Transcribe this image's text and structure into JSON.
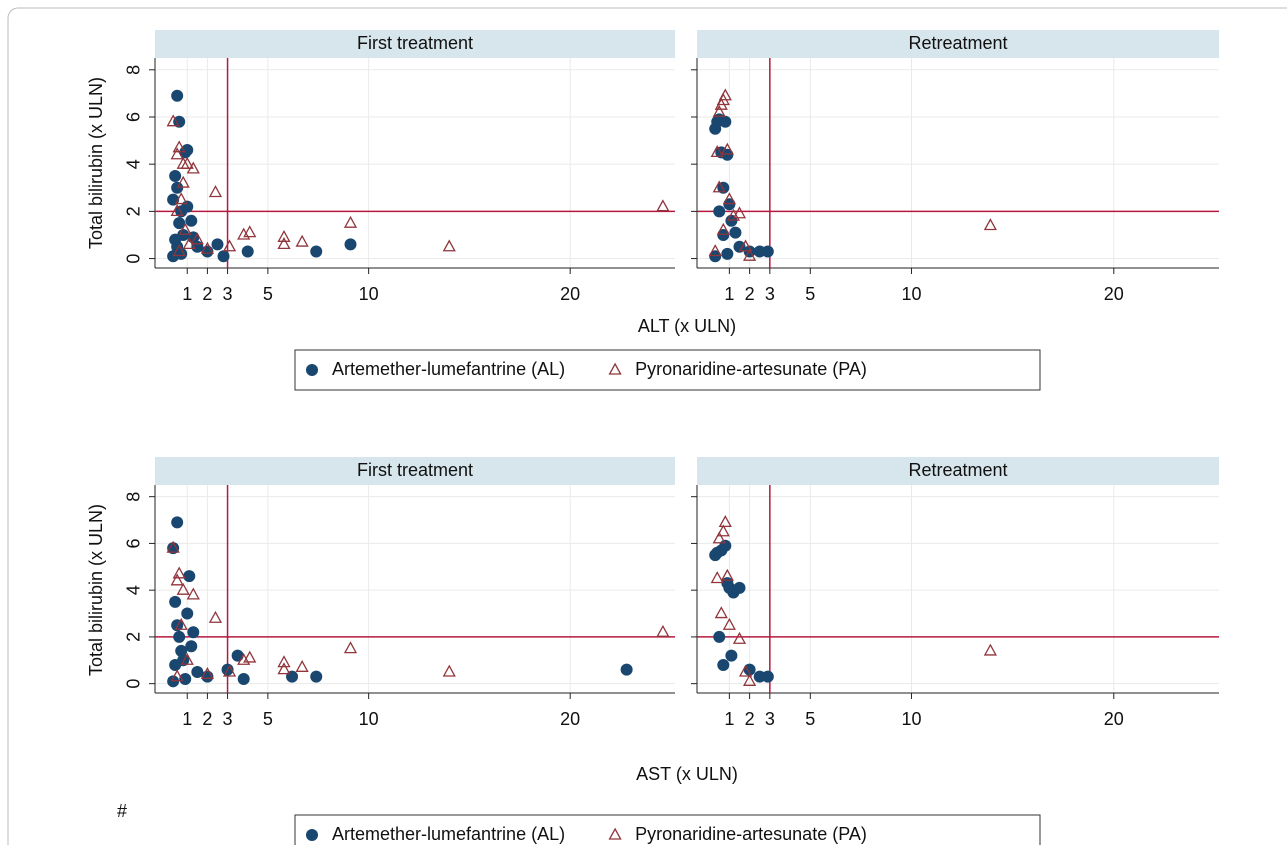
{
  "chart_data": [
    {
      "type": "scatter",
      "title": "First treatment",
      "ylabel": "Total bilirubin (x ULN)",
      "xlabel": "ALT (x ULN)",
      "legend": "bottom",
      "xlim": [
        -0.6,
        25.2
      ],
      "ylim": [
        -0.4,
        8.5
      ],
      "xticks": [
        1,
        2,
        3,
        5,
        10,
        20
      ],
      "yticks": [
        0,
        2,
        4,
        6,
        8
      ],
      "grid": true,
      "vline": 3,
      "hline": 2,
      "ref_color": "#b5193f",
      "series": [
        {
          "name": "Artemether-lumefantrine (AL)",
          "marker": "circle",
          "color": "#1a476f",
          "x": [
            0.3,
            0.4,
            0.5,
            0.5,
            0.6,
            0.7,
            0.8,
            0.9,
            1.0,
            1.2,
            1.5,
            2.0,
            2.5,
            2.8,
            4.0,
            7.4,
            9.1,
            0.5,
            0.6,
            1.0,
            0.4,
            0.7,
            0.3,
            1.3
          ],
          "y": [
            0.1,
            3.5,
            0.5,
            6.9,
            5.8,
            2.0,
            1.0,
            4.5,
            4.6,
            1.6,
            0.5,
            0.3,
            0.6,
            0.1,
            0.3,
            0.3,
            0.6,
            3.0,
            1.5,
            2.2,
            0.8,
            0.2,
            2.5,
            0.9
          ]
        },
        {
          "name": "Pyronaridine-artesunate (PA)",
          "marker": "triangle",
          "color": "#90353b",
          "x": [
            0.3,
            0.5,
            0.6,
            0.8,
            1.0,
            1.3,
            0.7,
            0.9,
            1.5,
            2.4,
            3.1,
            3.8,
            4.1,
            5.8,
            5.8,
            6.7,
            9.1,
            14.0,
            24.6,
            0.5,
            0.6,
            0.8,
            1.1,
            2.0
          ],
          "y": [
            5.8,
            4.4,
            4.7,
            4.0,
            4.0,
            3.8,
            2.5,
            1.2,
            0.8,
            2.8,
            0.5,
            1.0,
            1.1,
            0.9,
            0.6,
            0.7,
            1.5,
            0.5,
            2.2,
            2.0,
            0.3,
            3.2,
            0.6,
            0.4
          ]
        }
      ]
    },
    {
      "type": "scatter",
      "title": "Retreatment",
      "xlim": [
        -0.6,
        25.2
      ],
      "ylim": [
        -0.4,
        8.5
      ],
      "xticks": [
        1,
        2,
        3,
        5,
        10,
        20
      ],
      "yticks": [
        0,
        2,
        4,
        6,
        8
      ],
      "grid": true,
      "vline": 3,
      "hline": 2,
      "ref_color": "#b5193f",
      "series": [
        {
          "name": "Artemether-lumefantrine (AL)",
          "marker": "circle",
          "color": "#1a476f",
          "x": [
            0.3,
            0.4,
            0.5,
            0.6,
            0.7,
            0.8,
            0.9,
            1.0,
            1.1,
            1.3,
            1.5,
            2.0,
            2.5,
            2.9,
            0.5,
            0.7,
            0.9,
            0.3
          ],
          "y": [
            5.5,
            5.8,
            5.9,
            4.5,
            3.0,
            5.8,
            4.4,
            2.3,
            1.6,
            1.1,
            0.5,
            0.3,
            0.3,
            0.3,
            2.0,
            1.0,
            0.2,
            0.1
          ]
        },
        {
          "name": "Pyronaridine-artesunate (PA)",
          "marker": "triangle",
          "color": "#90353b",
          "x": [
            0.5,
            0.6,
            0.7,
            0.8,
            0.9,
            0.4,
            1.0,
            1.2,
            1.5,
            2.0,
            13.9,
            0.5,
            0.7,
            1.8,
            0.3
          ],
          "y": [
            6.2,
            6.5,
            6.7,
            6.9,
            4.6,
            4.5,
            2.5,
            1.8,
            1.9,
            0.1,
            1.4,
            3.0,
            1.2,
            0.5,
            0.3
          ]
        }
      ]
    },
    {
      "type": "scatter",
      "title": "First treatment",
      "ylabel": "Total bilirubin (x ULN)",
      "xlabel": "AST (x ULN)",
      "legend": "bottom",
      "xlim": [
        -0.6,
        25.2
      ],
      "ylim": [
        -0.4,
        8.5
      ],
      "xticks": [
        1,
        2,
        3,
        5,
        10,
        20
      ],
      "yticks": [
        0,
        2,
        4,
        6,
        8
      ],
      "grid": true,
      "vline": 3,
      "hline": 2,
      "ref_color": "#b5193f",
      "series": [
        {
          "name": "Artemether-lumefantrine (AL)",
          "marker": "circle",
          "color": "#1a476f",
          "x": [
            0.3,
            0.5,
            0.3,
            1.1,
            0.4,
            0.6,
            0.8,
            1.0,
            1.2,
            1.5,
            2.0,
            3.0,
            3.5,
            3.8,
            6.2,
            7.4,
            22.8,
            0.5,
            0.7,
            0.9,
            0.4,
            1.3
          ],
          "y": [
            0.1,
            6.9,
            5.8,
            4.6,
            3.5,
            2.0,
            1.0,
            3.0,
            1.6,
            0.5,
            0.3,
            0.6,
            1.2,
            0.2,
            0.3,
            0.3,
            0.6,
            2.5,
            1.4,
            0.2,
            0.8,
            2.2
          ]
        },
        {
          "name": "Pyronaridine-artesunate (PA)",
          "marker": "triangle",
          "color": "#90353b",
          "x": [
            0.3,
            0.5,
            0.6,
            0.8,
            1.3,
            2.4,
            3.1,
            3.8,
            4.1,
            5.8,
            5.8,
            6.7,
            9.1,
            14.0,
            24.6,
            0.7,
            1.0,
            2.0,
            0.5
          ],
          "y": [
            5.8,
            4.4,
            4.7,
            4.0,
            3.8,
            2.8,
            0.5,
            1.0,
            1.1,
            0.9,
            0.6,
            0.7,
            1.5,
            0.5,
            2.2,
            2.5,
            1.0,
            0.4,
            0.3
          ]
        }
      ]
    },
    {
      "type": "scatter",
      "title": "Retreatment",
      "xlim": [
        -0.6,
        25.2
      ],
      "ylim": [
        -0.4,
        8.5
      ],
      "xticks": [
        1,
        2,
        3,
        5,
        10,
        20
      ],
      "yticks": [
        0,
        2,
        4,
        6,
        8
      ],
      "grid": true,
      "vline": 3,
      "hline": 2,
      "ref_color": "#b5193f",
      "series": [
        {
          "name": "Artemether-lumefantrine (AL)",
          "marker": "circle",
          "color": "#1a476f",
          "x": [
            0.3,
            0.4,
            0.6,
            0.8,
            1.0,
            1.2,
            1.5,
            0.9,
            1.1,
            2.0,
            2.5,
            2.9,
            0.5,
            0.7
          ],
          "y": [
            5.5,
            5.6,
            5.7,
            5.9,
            4.1,
            3.9,
            4.1,
            4.3,
            1.2,
            0.6,
            0.3,
            0.3,
            2.0,
            0.8
          ]
        },
        {
          "name": "Pyronaridine-artesunate (PA)",
          "marker": "triangle",
          "color": "#90353b",
          "x": [
            0.5,
            0.7,
            0.8,
            0.9,
            0.4,
            1.0,
            1.5,
            2.0,
            13.9,
            0.6,
            1.8
          ],
          "y": [
            6.2,
            6.5,
            6.9,
            4.6,
            4.5,
            2.5,
            1.9,
            0.1,
            1.4,
            3.0,
            0.5
          ]
        }
      ]
    }
  ],
  "footnote": "#"
}
